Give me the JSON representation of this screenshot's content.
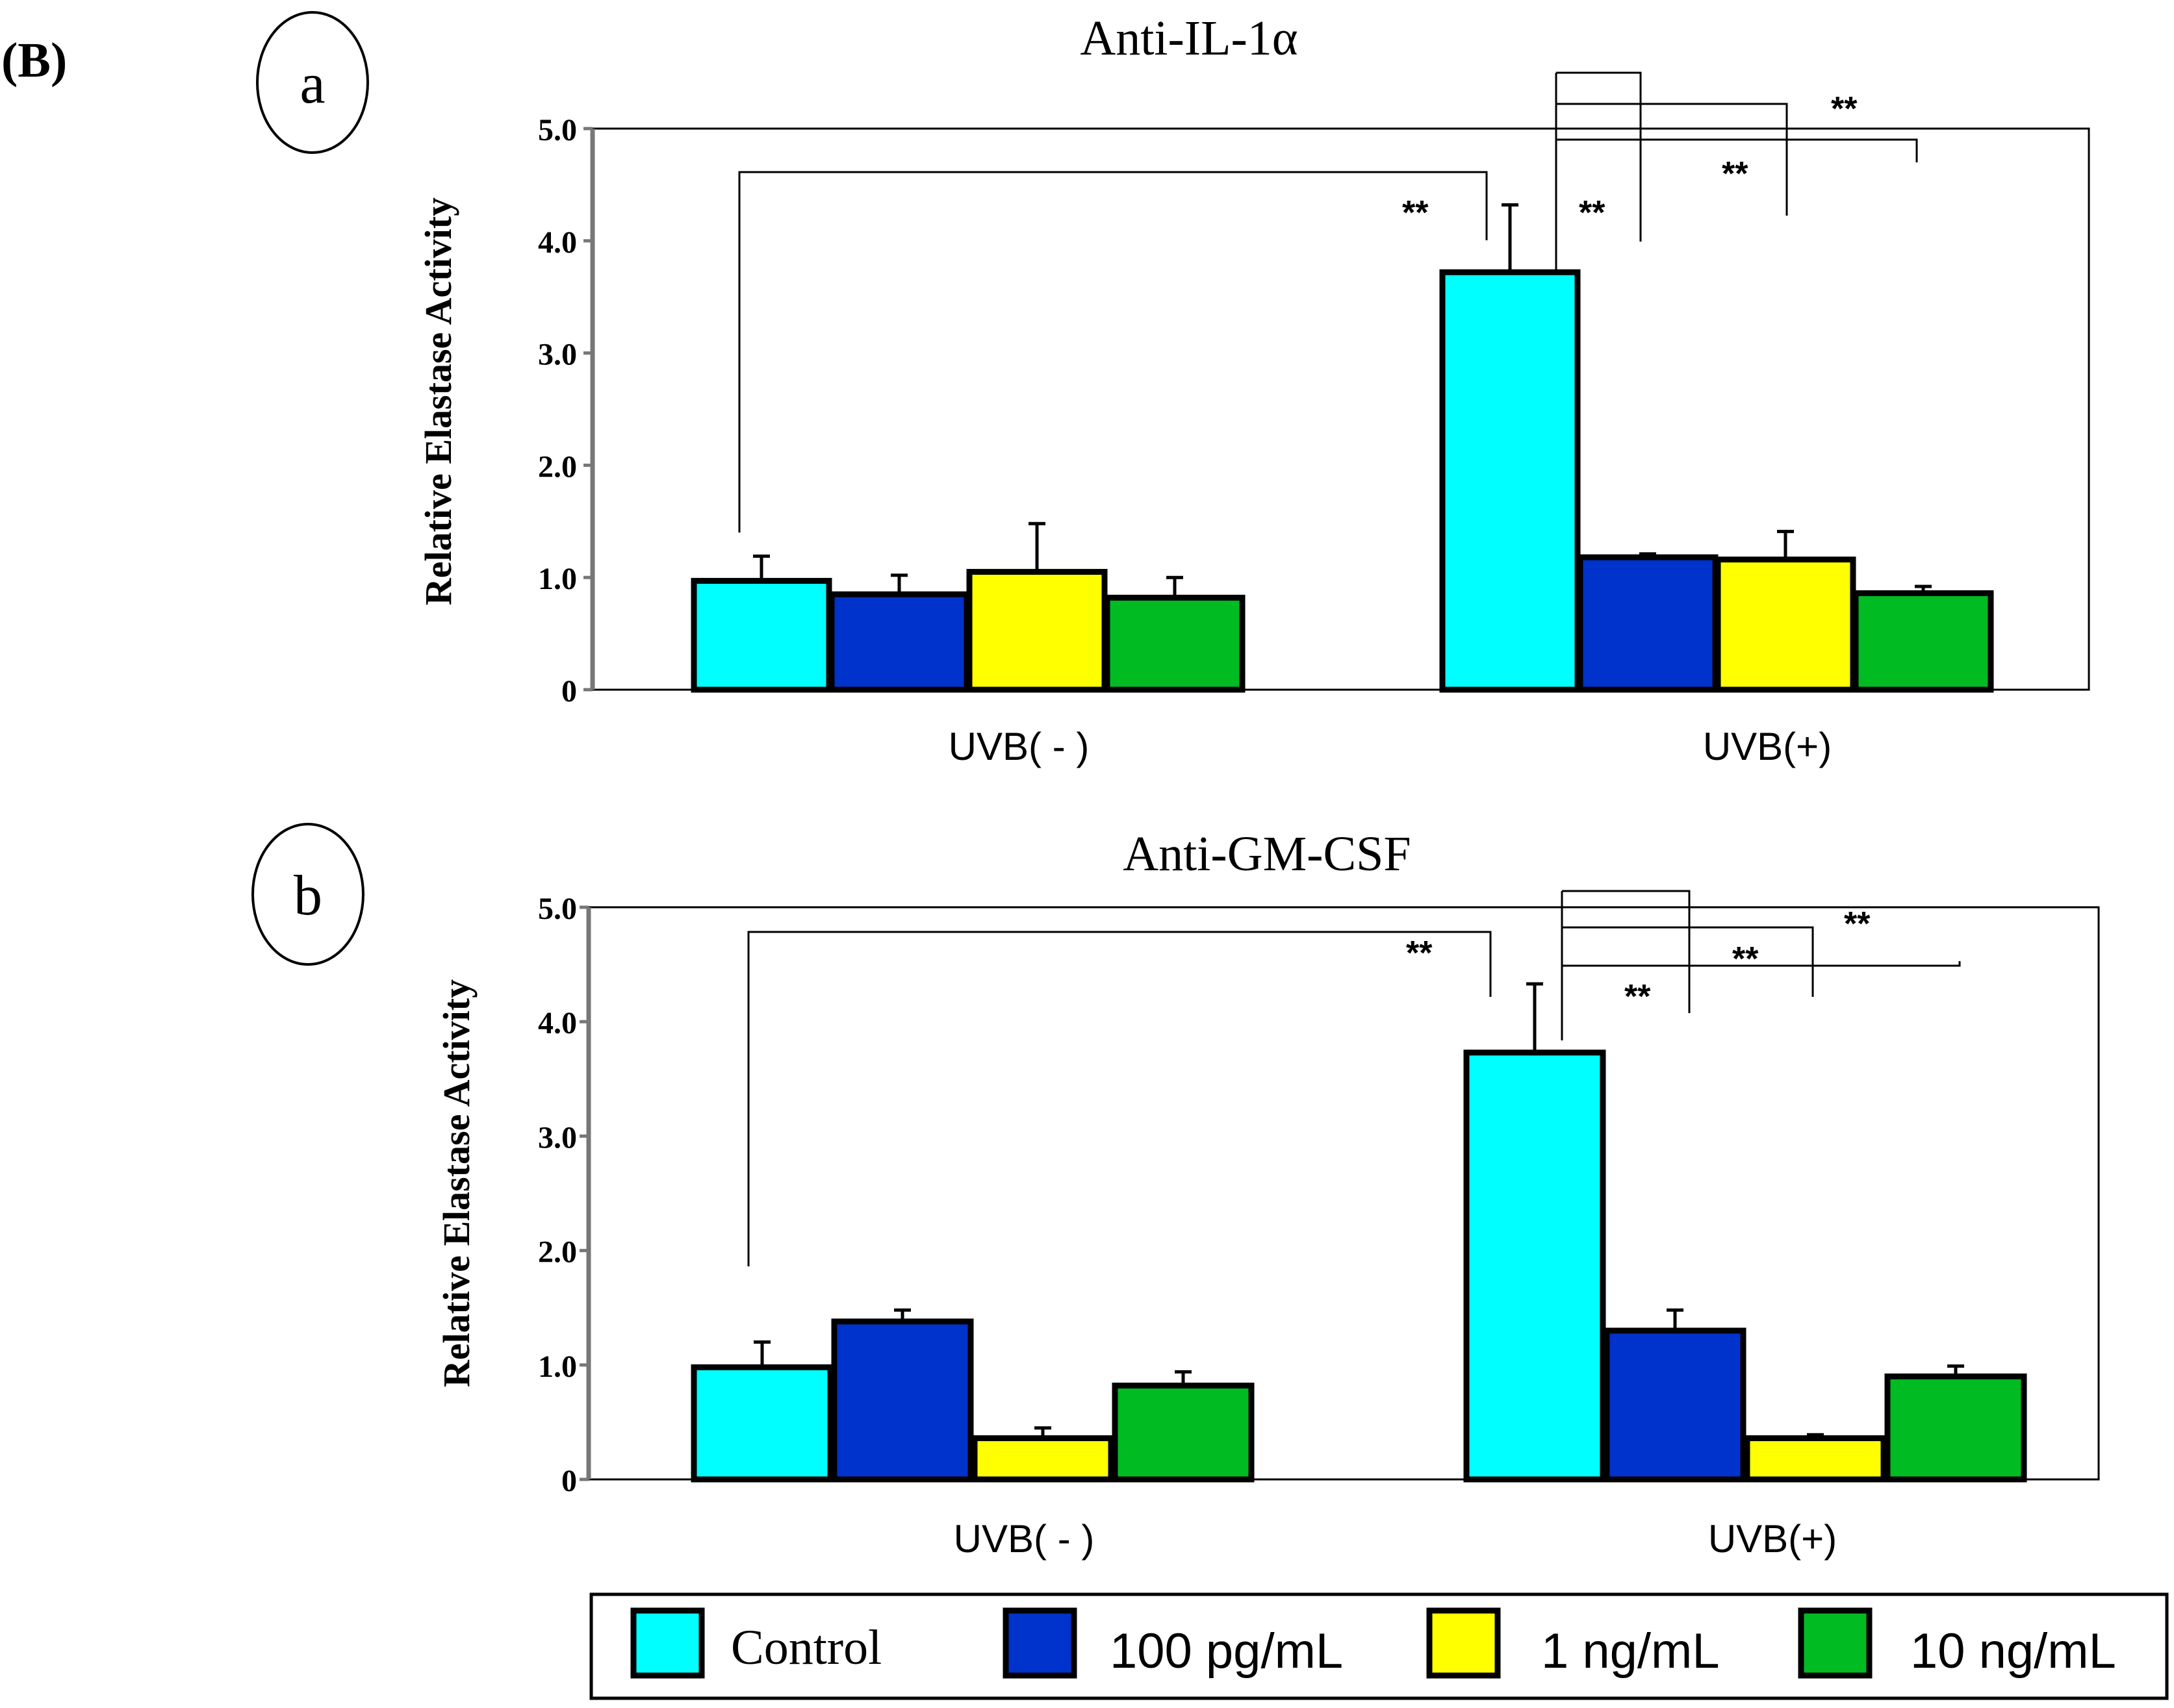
{
  "panel_label": "(B)",
  "colors": {
    "control": "#00FFFF",
    "pg100": "#0033CC",
    "ng1": "#FFFF00",
    "ng10": "#00BB22",
    "outline": "#000000"
  },
  "legend": {
    "items": [
      {
        "key": "control",
        "label": "Control"
      },
      {
        "key": "pg100",
        "label": "100 pg/mL"
      },
      {
        "key": "ng1",
        "label": "1 ng/mL"
      },
      {
        "key": "ng10",
        "label": "10 ng/mL"
      }
    ]
  },
  "chart_data": [
    {
      "type": "bar",
      "panel": "a",
      "title": "Anti-IL-1α",
      "ylabel": "Relative Elastase Activity",
      "ylim": [
        0,
        5.0
      ],
      "yticks": [
        "0",
        "1.0",
        "2.0",
        "3.0",
        "4.0",
        "5.0"
      ],
      "categories": [
        "UVB( - )",
        "UVB(+)"
      ],
      "series": [
        {
          "name": "Control",
          "key": "control",
          "values": [
            0.97,
            3.72
          ],
          "errors": [
            0.22,
            0.6
          ]
        },
        {
          "name": "100 pg/mL",
          "key": "pg100",
          "values": [
            0.85,
            1.18
          ],
          "errors": [
            0.17,
            0.03
          ]
        },
        {
          "name": "1 ng/mL",
          "key": "ng1",
          "values": [
            1.05,
            1.16
          ],
          "errors": [
            0.43,
            0.25
          ]
        },
        {
          "name": "10 ng/mL",
          "key": "ng10",
          "values": [
            0.82,
            0.86
          ],
          "errors": [
            0.18,
            0.06
          ]
        }
      ],
      "significance": [
        {
          "from": [
            0,
            0
          ],
          "to": [
            1,
            0
          ],
          "label": "**"
        },
        {
          "from": [
            1,
            0
          ],
          "to": [
            1,
            1
          ],
          "label": "**"
        },
        {
          "from": [
            1,
            0
          ],
          "to": [
            1,
            2
          ],
          "label": "**"
        },
        {
          "from": [
            1,
            0
          ],
          "to": [
            1,
            3
          ],
          "label": "**"
        }
      ]
    },
    {
      "type": "bar",
      "panel": "b",
      "title": "Anti-GM-CSF",
      "ylabel": "Relative Elastase Activity",
      "ylim": [
        0,
        5.0
      ],
      "yticks": [
        "0",
        "1.0",
        "2.0",
        "3.0",
        "4.0",
        "5.0"
      ],
      "categories": [
        "UVB( - )",
        "UVB(+)"
      ],
      "series": [
        {
          "name": "Control",
          "key": "control",
          "values": [
            0.98,
            3.73
          ],
          "errors": [
            0.22,
            0.6
          ]
        },
        {
          "name": "100 pg/mL",
          "key": "pg100",
          "values": [
            1.38,
            1.3
          ],
          "errors": [
            0.1,
            0.18
          ]
        },
        {
          "name": "1 ng/mL",
          "key": "ng1",
          "values": [
            0.36,
            0.36
          ],
          "errors": [
            0.09,
            0.03
          ]
        },
        {
          "name": "10 ng/mL",
          "key": "ng10",
          "values": [
            0.82,
            0.9
          ],
          "errors": [
            0.12,
            0.09
          ]
        }
      ],
      "significance": [
        {
          "from": [
            0,
            0
          ],
          "to": [
            1,
            0
          ],
          "label": "**"
        },
        {
          "from": [
            1,
            0
          ],
          "to": [
            1,
            1
          ],
          "label": "**"
        },
        {
          "from": [
            1,
            0
          ],
          "to": [
            1,
            2
          ],
          "label": "**"
        },
        {
          "from": [
            1,
            0
          ],
          "to": [
            1,
            3
          ],
          "label": "**"
        }
      ]
    }
  ]
}
